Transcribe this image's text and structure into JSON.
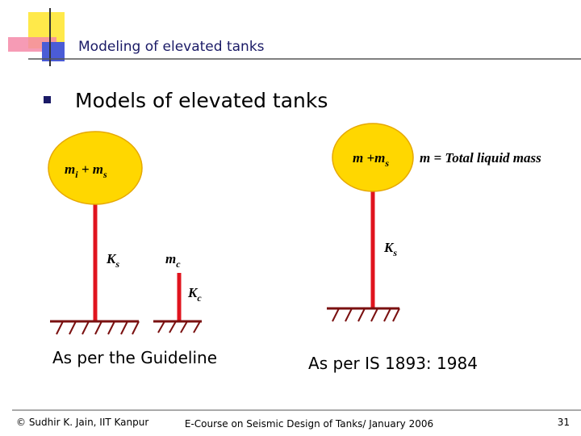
{
  "header": {
    "title": "Modeling of elevated tanks"
  },
  "bullet": "Models of elevated tanks",
  "guideline_model": {
    "impulsive_mass": {
      "parts": [
        {
          "text": "m",
          "sub": "i"
        },
        {
          "text": " + m",
          "sub": "s"
        }
      ]
    },
    "impulsive_stiffness": {
      "text": "K",
      "sub": "s"
    },
    "convective_mass": {
      "text": "m",
      "sub": "c"
    },
    "convective_stiffness": {
      "text": "K",
      "sub": "c"
    },
    "caption": "As per the Guideline"
  },
  "is_model": {
    "mass": {
      "text": "m +m",
      "sub": "s"
    },
    "stiffness": {
      "text": "K",
      "sub": "s"
    },
    "note": "m = Total liquid mass",
    "caption": "As per IS 1893: 1984"
  },
  "footer": {
    "left": "© Sudhir K. Jain, IIT Kanpur",
    "center": "E-Course on Seismic Design of Tanks/ January 2006",
    "page": "31"
  }
}
